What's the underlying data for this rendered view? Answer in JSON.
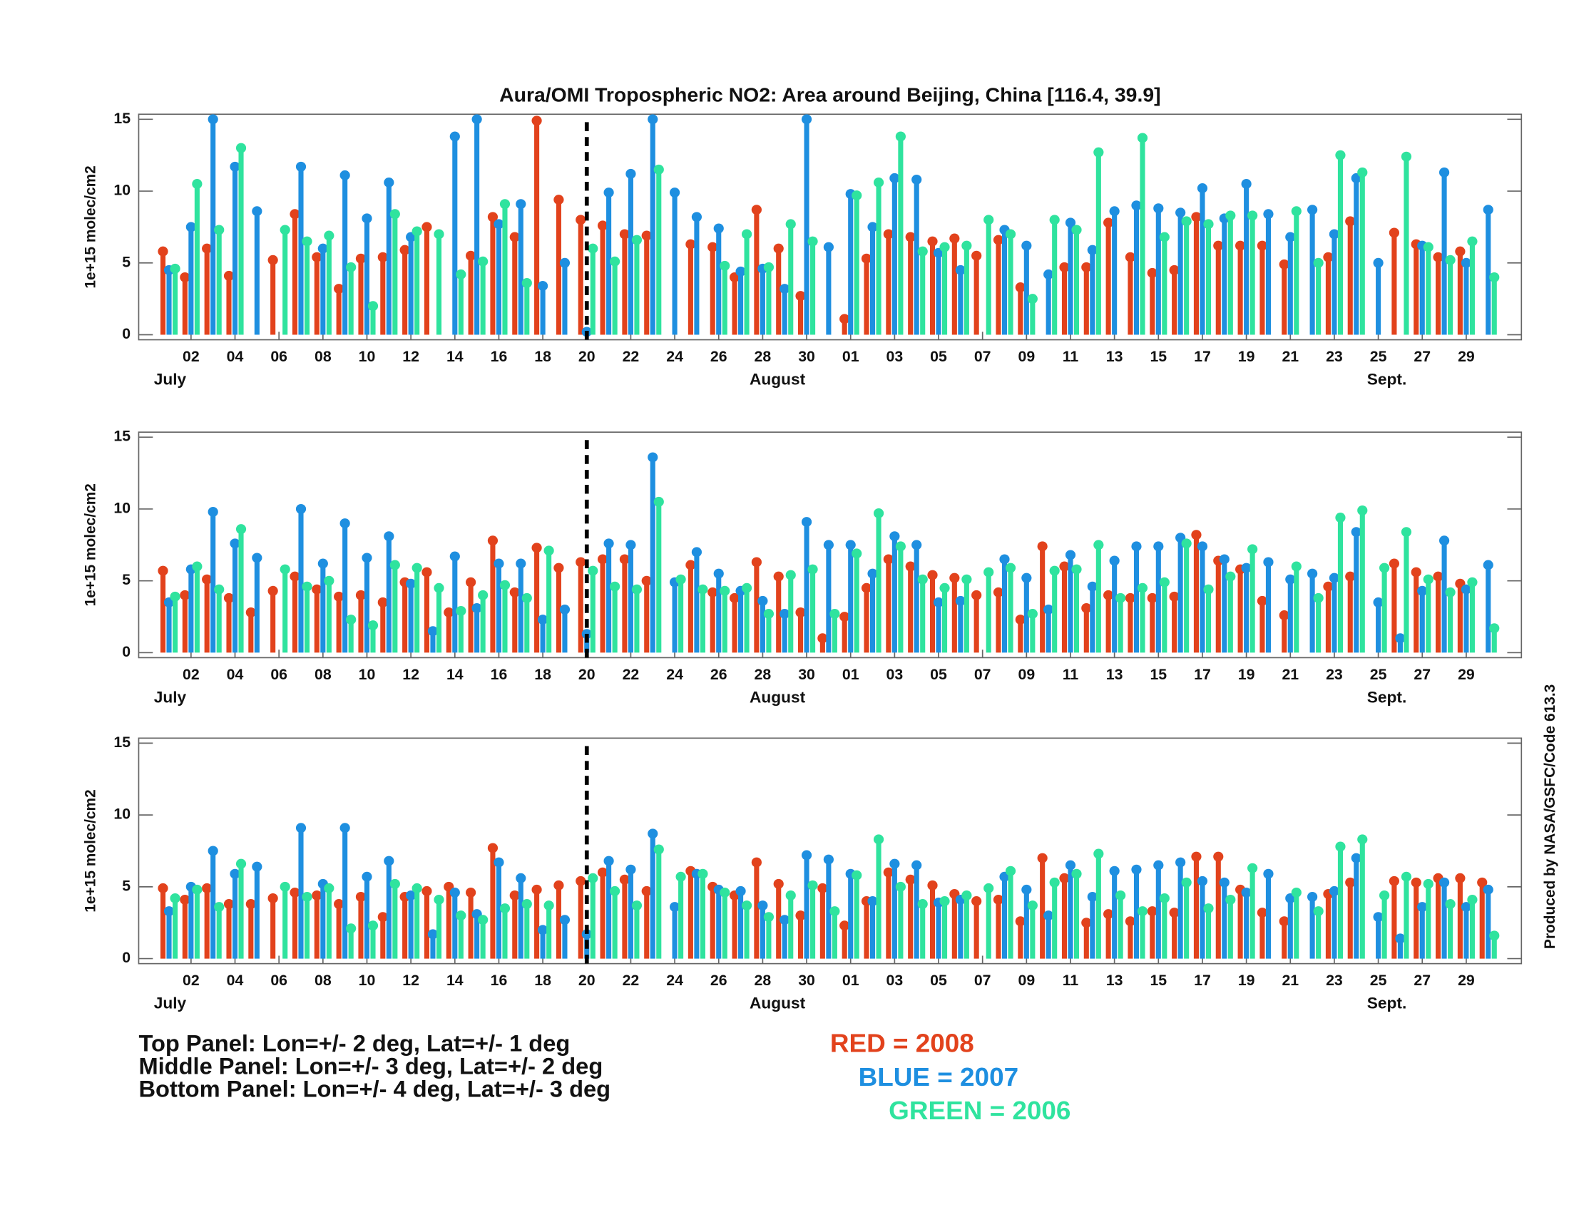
{
  "chart_data": [
    {
      "type": "stem",
      "title": "Aura/OMI Tropospheric NO2: Area around Beijing, China [116.4, 39.9]",
      "y_label": "1e+15 molec/cm2",
      "categories": [
        null,
        "02",
        null,
        "04",
        null,
        "06",
        null,
        "08",
        null,
        "10",
        null,
        "12",
        null,
        "14",
        null,
        "16",
        null,
        "18",
        null,
        "20",
        null,
        "22",
        null,
        "24",
        null,
        "26",
        null,
        "28",
        null,
        "30",
        null,
        "01",
        null,
        "03",
        null,
        "05",
        null,
        "07",
        null,
        "09",
        null,
        "11",
        null,
        "13",
        null,
        "15",
        null,
        "17",
        null,
        "19",
        null,
        "21",
        null,
        "23",
        null,
        "25",
        null,
        "27",
        null,
        "29",
        null
      ],
      "month_labels": [
        "July",
        "August",
        "Sept."
      ],
      "ylim": [
        -0.35,
        15.35
      ],
      "yticks": [
        0,
        5,
        10,
        15
      ],
      "series": [
        {
          "name": "RED = 2008",
          "color": "#e2421c",
          "values": [
            5.8,
            4.0,
            6.0,
            4.1,
            null,
            5.2,
            8.4,
            5.4,
            3.2,
            5.3,
            5.4,
            5.9,
            7.5,
            null,
            5.5,
            8.2,
            6.8,
            14.9,
            9.4,
            8.0,
            7.6,
            7.0,
            6.9,
            null,
            6.3,
            6.1,
            4.0,
            8.7,
            6.0,
            2.7,
            null,
            1.1,
            5.3,
            7.0,
            6.8,
            6.5,
            6.7,
            5.5,
            6.6,
            3.3,
            null,
            4.7,
            4.7,
            7.8,
            5.4,
            4.3,
            4.5,
            8.2,
            6.2,
            6.2,
            6.2,
            4.9,
            null,
            5.4,
            7.9,
            null,
            7.1,
            6.3,
            5.4,
            5.8,
            null
          ]
        },
        {
          "name": "BLUE = 2007",
          "color": "#1e8fe0",
          "values": [
            4.5,
            7.5,
            15,
            11.7,
            8.6,
            null,
            11.7,
            6.0,
            11.1,
            8.1,
            10.6,
            6.8,
            null,
            13.8,
            15,
            7.7,
            9.1,
            3.4,
            5.0,
            0.2,
            9.9,
            11.2,
            15,
            9.9,
            8.2,
            7.4,
            4.4,
            4.6,
            3.2,
            15,
            6.1,
            9.8,
            7.5,
            10.9,
            10.8,
            5.7,
            4.5,
            null,
            7.3,
            6.2,
            4.2,
            7.8,
            5.9,
            8.6,
            9.0,
            8.8,
            8.5,
            10.2,
            8.1,
            10.5,
            8.4,
            6.8,
            8.7,
            7.0,
            10.9,
            5.0,
            null,
            6.2,
            11.3,
            5.0,
            8.7
          ]
        },
        {
          "name": "GREEN = 2006",
          "color": "#2fe39e",
          "values": [
            4.6,
            10.5,
            7.3,
            13.0,
            null,
            7.3,
            6.5,
            6.9,
            4.7,
            2.0,
            8.4,
            7.2,
            7.0,
            4.2,
            5.1,
            9.1,
            3.6,
            null,
            null,
            6.0,
            5.1,
            6.6,
            11.5,
            null,
            null,
            4.8,
            7.0,
            4.7,
            7.7,
            6.5,
            null,
            9.7,
            10.6,
            13.8,
            5.8,
            6.1,
            6.2,
            8.0,
            7.0,
            2.5,
            8.0,
            7.3,
            12.7,
            null,
            13.7,
            6.8,
            7.9,
            7.7,
            8.3,
            8.3,
            null,
            8.6,
            5.0,
            12.5,
            11.3,
            null,
            12.4,
            6.1,
            5.2,
            6.5,
            4.0
          ]
        }
      ]
    },
    {
      "type": "stem",
      "y_label": "1e+15 molec/cm2",
      "categories": [
        null,
        "02",
        null,
        "04",
        null,
        "06",
        null,
        "08",
        null,
        "10",
        null,
        "12",
        null,
        "14",
        null,
        "16",
        null,
        "18",
        null,
        "20",
        null,
        "22",
        null,
        "24",
        null,
        "26",
        null,
        "28",
        null,
        "30",
        null,
        "01",
        null,
        "03",
        null,
        "05",
        null,
        "07",
        null,
        "09",
        null,
        "11",
        null,
        "13",
        null,
        "15",
        null,
        "17",
        null,
        "19",
        null,
        "21",
        null,
        "23",
        null,
        "25",
        null,
        "27",
        null,
        "29",
        null
      ],
      "month_labels": [
        "July",
        "August",
        "Sept."
      ],
      "ylim": [
        -0.35,
        15.35
      ],
      "yticks": [
        0,
        5,
        10,
        15
      ],
      "series": [
        {
          "color": "#e2421c",
          "values": [
            5.7,
            4.0,
            5.1,
            3.8,
            2.8,
            4.3,
            5.3,
            4.4,
            3.9,
            4.0,
            3.5,
            4.9,
            5.6,
            2.8,
            4.9,
            7.8,
            4.2,
            7.3,
            5.9,
            6.3,
            6.5,
            6.5,
            5.0,
            null,
            6.1,
            4.2,
            3.8,
            6.3,
            5.3,
            2.8,
            1.0,
            2.5,
            4.5,
            6.5,
            6.0,
            5.4,
            5.2,
            4.0,
            4.2,
            2.3,
            7.4,
            6.0,
            3.1,
            4.0,
            3.8,
            3.8,
            3.9,
            8.2,
            6.4,
            5.8,
            3.6,
            2.6,
            null,
            4.6,
            5.3,
            null,
            6.2,
            5.6,
            5.3,
            4.8,
            null
          ]
        },
        {
          "color": "#1e8fe0",
          "values": [
            3.5,
            5.8,
            9.8,
            7.6,
            6.6,
            null,
            10.0,
            6.2,
            9.0,
            6.6,
            8.1,
            4.8,
            1.5,
            6.7,
            3.1,
            6.2,
            6.2,
            2.3,
            3.0,
            1.3,
            7.6,
            7.5,
            13.6,
            4.9,
            7.0,
            5.5,
            4.3,
            3.6,
            2.7,
            9.1,
            7.5,
            7.5,
            5.5,
            8.1,
            7.5,
            3.5,
            3.6,
            null,
            6.5,
            5.2,
            3.0,
            6.8,
            4.6,
            6.4,
            7.4,
            7.4,
            8.0,
            7.4,
            6.5,
            5.9,
            6.3,
            5.1,
            5.5,
            5.2,
            8.4,
            3.5,
            1.0,
            4.3,
            7.8,
            4.4,
            6.1
          ]
        },
        {
          "color": "#2fe39e",
          "values": [
            3.9,
            6.0,
            4.4,
            8.6,
            null,
            5.8,
            4.6,
            5.0,
            2.3,
            1.9,
            6.1,
            5.9,
            4.5,
            2.9,
            4.0,
            4.7,
            3.8,
            7.1,
            null,
            5.7,
            4.6,
            4.4,
            10.5,
            5.1,
            4.4,
            4.3,
            4.5,
            2.7,
            5.4,
            5.8,
            2.7,
            6.9,
            9.7,
            7.4,
            5.1,
            4.5,
            5.1,
            5.6,
            5.9,
            2.7,
            5.7,
            5.8,
            7.5,
            3.8,
            4.5,
            4.9,
            7.6,
            4.4,
            5.3,
            7.2,
            null,
            6.0,
            3.8,
            9.4,
            9.9,
            5.9,
            8.4,
            5.1,
            4.2,
            4.9,
            1.7
          ]
        }
      ]
    },
    {
      "type": "stem",
      "y_label": "1e+15 molec/cm2",
      "categories": [
        null,
        "02",
        null,
        "04",
        null,
        "06",
        null,
        "08",
        null,
        "10",
        null,
        "12",
        null,
        "14",
        null,
        "16",
        null,
        "18",
        null,
        "20",
        null,
        "22",
        null,
        "24",
        null,
        "26",
        null,
        "28",
        null,
        "30",
        null,
        "01",
        null,
        "03",
        null,
        "05",
        null,
        "07",
        null,
        "09",
        null,
        "11",
        null,
        "13",
        null,
        "15",
        null,
        "17",
        null,
        "19",
        null,
        "21",
        null,
        "23",
        null,
        "25",
        null,
        "27",
        null,
        "29",
        null
      ],
      "month_labels": [
        "July",
        "August",
        "Sept."
      ],
      "ylim": [
        -0.35,
        15.35
      ],
      "yticks": [
        0,
        5,
        10,
        15
      ],
      "series": [
        {
          "color": "#e2421c",
          "values": [
            4.9,
            4.1,
            4.9,
            3.8,
            3.8,
            4.2,
            4.6,
            4.4,
            3.8,
            4.3,
            2.9,
            4.3,
            4.7,
            5.0,
            4.6,
            7.7,
            4.4,
            4.8,
            5.1,
            5.4,
            6.0,
            5.5,
            4.7,
            null,
            6.1,
            5.0,
            4.4,
            6.7,
            5.2,
            3.0,
            4.9,
            2.3,
            4.0,
            6.0,
            5.5,
            5.1,
            4.5,
            4.0,
            4.1,
            2.6,
            7.0,
            5.6,
            2.5,
            3.1,
            2.6,
            3.3,
            3.2,
            7.1,
            7.1,
            4.8,
            3.2,
            2.6,
            null,
            4.5,
            5.3,
            null,
            5.4,
            5.3,
            5.6,
            5.6,
            5.3
          ]
        },
        {
          "color": "#1e8fe0",
          "values": [
            3.3,
            5.0,
            7.5,
            5.9,
            6.4,
            null,
            9.1,
            5.2,
            9.1,
            5.7,
            6.8,
            4.4,
            1.7,
            4.6,
            3.1,
            6.7,
            5.6,
            2.0,
            2.7,
            1.7,
            6.8,
            6.2,
            8.7,
            3.6,
            5.9,
            4.8,
            4.7,
            3.7,
            2.7,
            7.2,
            6.9,
            5.9,
            4.0,
            6.6,
            6.5,
            3.9,
            4.1,
            null,
            5.7,
            4.8,
            3.0,
            6.5,
            4.3,
            6.1,
            6.2,
            6.5,
            6.7,
            5.4,
            5.3,
            4.6,
            5.9,
            4.2,
            4.3,
            4.7,
            7.0,
            2.9,
            1.4,
            3.6,
            5.3,
            3.6,
            4.8
          ]
        },
        {
          "color": "#2fe39e",
          "values": [
            4.2,
            4.8,
            3.6,
            6.6,
            null,
            5.0,
            4.3,
            4.9,
            2.1,
            2.3,
            5.2,
            4.9,
            4.1,
            3.0,
            2.7,
            3.5,
            3.8,
            3.7,
            null,
            5.6,
            4.7,
            3.7,
            7.6,
            5.7,
            5.9,
            4.6,
            3.7,
            2.9,
            4.4,
            5.1,
            3.3,
            5.8,
            8.3,
            5.0,
            3.8,
            4.0,
            4.4,
            4.9,
            6.1,
            3.7,
            5.3,
            5.9,
            7.3,
            4.4,
            3.3,
            4.2,
            5.3,
            3.5,
            4.1,
            6.3,
            null,
            4.6,
            3.3,
            7.8,
            8.3,
            4.4,
            5.7,
            5.2,
            3.8,
            4.1,
            1.6
          ]
        }
      ]
    }
  ],
  "notes": [
    "Top Panel: Lon=+/- 2 deg, Lat=+/- 1 deg",
    "Middle Panel: Lon=+/- 3 deg, Lat=+/- 2 deg",
    "Bottom Panel: Lon=+/- 4 deg, Lat=+/- 3 deg"
  ],
  "credit": "Produced by NASA/GSFC/Code 613.3"
}
